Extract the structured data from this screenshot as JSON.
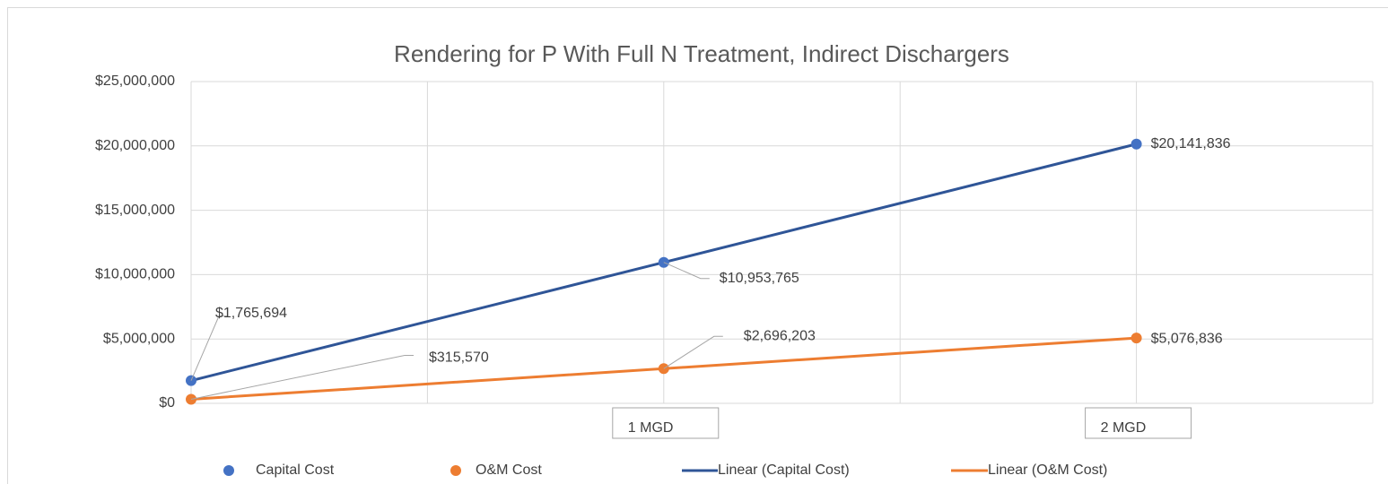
{
  "chart_data": {
    "type": "scatter",
    "title": "Rendering for P With Full N Treatment, Indirect Dischargers",
    "x": [
      0,
      1,
      2
    ],
    "series": [
      {
        "name": "Capital Cost",
        "color": "#4472c4",
        "trendline_name": "Linear (Capital Cost)",
        "trendline_color": "#2f5597",
        "values": [
          1765694,
          10953765,
          20141836
        ],
        "value_labels": [
          "$1,765,694",
          "$10,953,765",
          "$20,141,836"
        ]
      },
      {
        "name": "O&M Cost",
        "color": "#ed7d31",
        "trendline_name": "Linear (O&M Cost)",
        "trendline_color": "#ed7d31",
        "values": [
          315570,
          2696203,
          5076836
        ],
        "value_labels": [
          "$315,570",
          "$2,696,203",
          "$5,076,836"
        ]
      }
    ],
    "xlim": [
      0,
      2.5
    ],
    "xticks": [
      0,
      0.5,
      1,
      1.5,
      2,
      2.5
    ],
    "ylim": [
      0,
      25000000
    ],
    "yticks": [
      {
        "value": 0,
        "label": "$0"
      },
      {
        "value": 5000000,
        "label": "$5,000,000"
      },
      {
        "value": 10000000,
        "label": "$10,000,000"
      },
      {
        "value": 15000000,
        "label": "$15,000,000"
      },
      {
        "value": 20000000,
        "label": "$20,000,000"
      },
      {
        "value": 25000000,
        "label": "$25,000,000"
      }
    ],
    "annotations": [
      {
        "x": 1,
        "text": "1 MGD"
      },
      {
        "x": 2,
        "text": "2 MGD"
      }
    ],
    "grid": true,
    "legend": "bottom"
  }
}
